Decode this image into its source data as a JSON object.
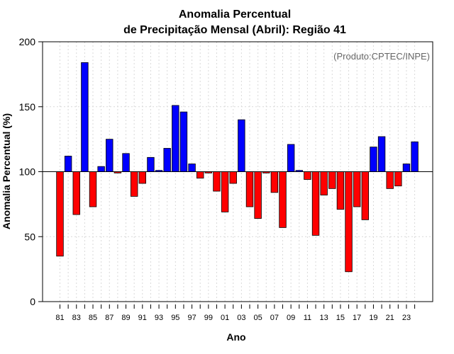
{
  "chart_data": {
    "type": "bar",
    "title_lines": [
      "Anomalia Percentual",
      "de Precipitação Mensal (Abril): Região 41"
    ],
    "xlabel": "Ano",
    "ylabel": "Anomalia Percentual (%)",
    "credit": "(Produto:CPTEC/INPE)",
    "baseline": 100,
    "ylim": [
      0,
      200
    ],
    "yticks": [
      "0",
      "50",
      "100",
      "150",
      "200"
    ],
    "grid": true,
    "colors": {
      "above": "#0000ff",
      "below": "#ff0000",
      "outline": "#000000",
      "grid": "#d9d9d9"
    },
    "years": [
      1981,
      1982,
      1983,
      1984,
      1985,
      1986,
      1987,
      1988,
      1989,
      1990,
      1991,
      1992,
      1993,
      1994,
      1995,
      1996,
      1997,
      1998,
      1999,
      2000,
      2001,
      2002,
      2003,
      2004,
      2005,
      2006,
      2007,
      2008,
      2009,
      2010,
      2011,
      2012,
      2013,
      2014,
      2015,
      2016,
      2017,
      2018,
      2019,
      2020,
      2021,
      2022,
      2023,
      2024
    ],
    "values": [
      35,
      112,
      67,
      184,
      73,
      104,
      125,
      99,
      114,
      81,
      91,
      111,
      101,
      118,
      151,
      146,
      106,
      95,
      99,
      85,
      69,
      91,
      140,
      73,
      64,
      99,
      84,
      57,
      121,
      101,
      94,
      51,
      82,
      87,
      71,
      23,
      73,
      63,
      119,
      127,
      87,
      89,
      106,
      123
    ],
    "xtick_labels": [
      "81",
      "83",
      "85",
      "87",
      "89",
      "91",
      "93",
      "95",
      "97",
      "99",
      "01",
      "03",
      "05",
      "07",
      "09",
      "11",
      "13",
      "15",
      "17",
      "19",
      "21",
      "23"
    ]
  }
}
